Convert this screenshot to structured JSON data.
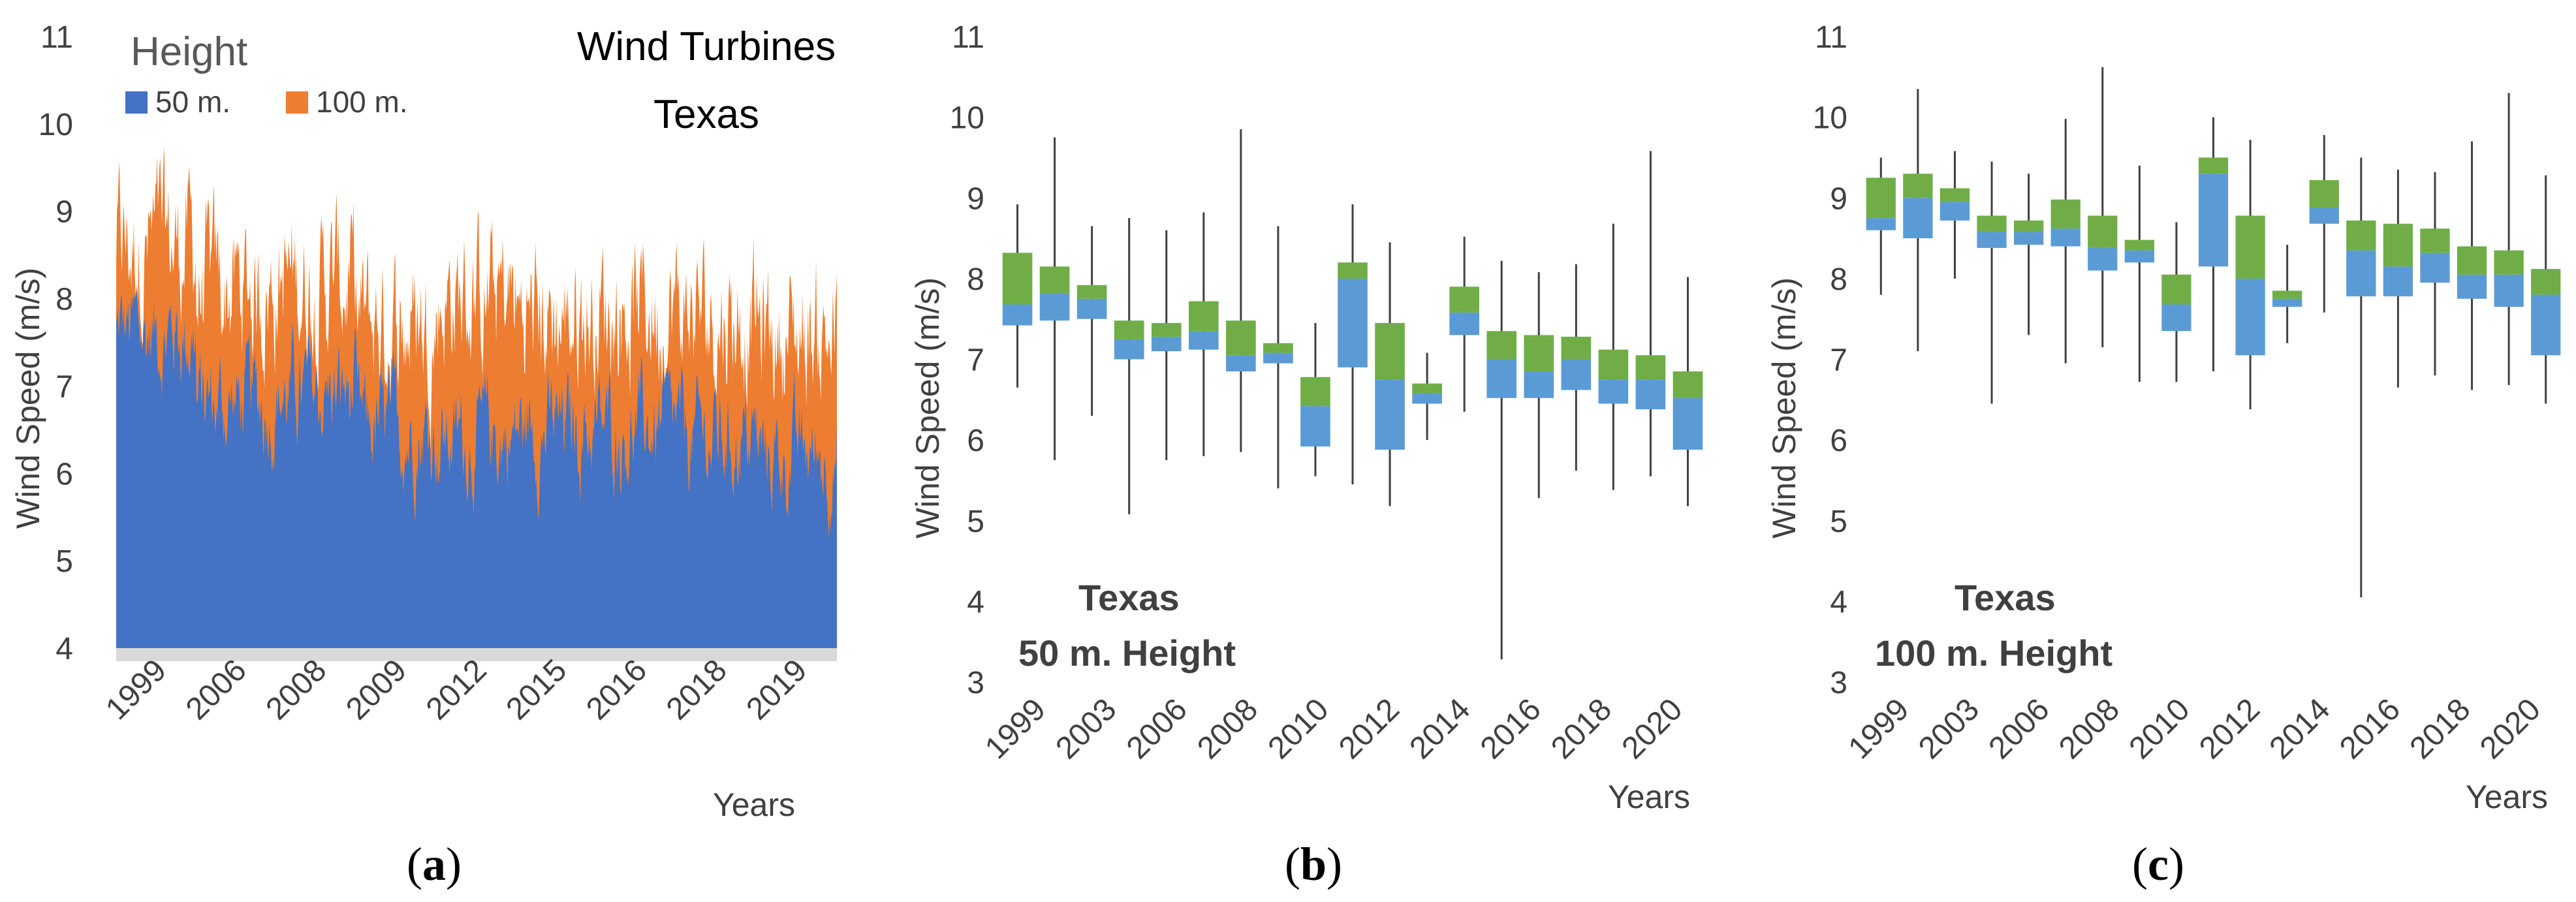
{
  "colors": {
    "series_50m": "#4472C4",
    "series_100m": "#ED7D31",
    "box_lower": "#5B9BD5",
    "box_upper": "#70AD47",
    "whisker": "#404040",
    "floor": "#D9D9D9",
    "text": "#404040"
  },
  "chart_data": [
    {
      "id": "a",
      "type": "area",
      "title_lines": [
        "Wind Turbines",
        "Texas"
      ],
      "legend_title": "Height",
      "ylabel": "Wind Speed (m/s)",
      "xlabel": "Years",
      "ylim": [
        4,
        11
      ],
      "yticks": [
        4,
        5,
        6,
        7,
        8,
        9,
        10,
        11
      ],
      "xticklabels": [
        "1999",
        "2006",
        "2008",
        "2009",
        "2012",
        "2015",
        "2016",
        "2018",
        "2019"
      ],
      "series": [
        {
          "name": "50 m.",
          "approx_mean_by_segment": [
            7.6,
            6.8,
            6.9,
            6.5,
            6.4,
            6.5,
            6.5,
            6.4,
            6.2
          ],
          "approx_peak": 8.3,
          "approx_min": 5.0
        },
        {
          "name": "100 m.",
          "approx_mean_by_segment": [
            8.6,
            8.1,
            8.2,
            7.7,
            8.0,
            7.8,
            7.9,
            7.8,
            7.6
          ],
          "approx_peak": 10.0,
          "approx_min": 5.1
        }
      ],
      "caption_letter": "a"
    },
    {
      "id": "b",
      "type": "box",
      "ylabel": "Wind Speed (m/s)",
      "xlabel": "Years",
      "ylim": [
        3,
        11
      ],
      "yticks": [
        3,
        4,
        5,
        6,
        7,
        8,
        9,
        10,
        11
      ],
      "annotation": [
        "Texas",
        "50 m. Height"
      ],
      "xticklabels": [
        "1999",
        "2003",
        "2006",
        "2008",
        "2010",
        "2012",
        "2014",
        "2016",
        "2018",
        "2020"
      ],
      "boxes": [
        {
          "q1": 7.42,
          "median": 7.68,
          "q3": 8.32,
          "min": 6.65,
          "max": 8.92
        },
        {
          "q1": 7.48,
          "median": 7.82,
          "q3": 8.15,
          "min": 5.75,
          "max": 9.75
        },
        {
          "q1": 7.5,
          "median": 7.75,
          "q3": 7.92,
          "min": 6.3,
          "max": 8.65
        },
        {
          "q1": 7.0,
          "median": 7.25,
          "q3": 7.48,
          "min": 5.08,
          "max": 8.75
        },
        {
          "q1": 7.1,
          "median": 7.28,
          "q3": 7.45,
          "min": 5.75,
          "max": 8.6
        },
        {
          "q1": 7.12,
          "median": 7.35,
          "q3": 7.72,
          "min": 5.8,
          "max": 8.82
        },
        {
          "q1": 6.85,
          "median": 7.05,
          "q3": 7.48,
          "min": 5.85,
          "max": 9.85
        },
        {
          "q1": 6.95,
          "median": 7.08,
          "q3": 7.2,
          "min": 5.4,
          "max": 8.65
        },
        {
          "q1": 5.92,
          "median": 6.42,
          "q3": 6.78,
          "min": 5.55,
          "max": 7.45
        },
        {
          "q1": 6.9,
          "median": 8.0,
          "q3": 8.2,
          "min": 5.45,
          "max": 8.92
        },
        {
          "q1": 5.88,
          "median": 6.75,
          "q3": 7.45,
          "min": 5.18,
          "max": 8.45
        },
        {
          "q1": 6.45,
          "median": 6.58,
          "q3": 6.7,
          "min": 6.0,
          "max": 7.08
        },
        {
          "q1": 7.3,
          "median": 7.58,
          "q3": 7.9,
          "min": 6.35,
          "max": 8.52
        },
        {
          "q1": 6.52,
          "median": 7.0,
          "q3": 7.35,
          "min": 3.28,
          "max": 8.22
        },
        {
          "q1": 6.52,
          "median": 6.85,
          "q3": 7.3,
          "min": 5.28,
          "max": 8.08
        },
        {
          "q1": 6.62,
          "median": 7.0,
          "q3": 7.28,
          "min": 5.62,
          "max": 8.18
        },
        {
          "q1": 6.45,
          "median": 6.75,
          "q3": 7.12,
          "min": 5.38,
          "max": 8.68
        },
        {
          "q1": 6.38,
          "median": 6.75,
          "q3": 7.05,
          "min": 5.55,
          "max": 9.58
        },
        {
          "q1": 5.88,
          "median": 6.52,
          "q3": 6.85,
          "min": 5.18,
          "max": 8.02
        }
      ],
      "caption_letter": "b"
    },
    {
      "id": "c",
      "type": "box",
      "ylabel": "Wind Speed (m/s)",
      "xlabel": "Years",
      "ylim": [
        3,
        11
      ],
      "yticks": [
        3,
        4,
        5,
        6,
        7,
        8,
        9,
        10,
        11
      ],
      "annotation": [
        "Texas",
        "100 m. Height"
      ],
      "xticklabels": [
        "1999",
        "2003",
        "2006",
        "2008",
        "2010",
        "2012",
        "2014",
        "2016",
        "2018",
        "2020"
      ],
      "boxes": [
        {
          "q1": 8.6,
          "median": 8.75,
          "q3": 9.25,
          "min": 7.8,
          "max": 9.5
        },
        {
          "q1": 8.5,
          "median": 9.0,
          "q3": 9.3,
          "min": 7.1,
          "max": 10.35
        },
        {
          "q1": 8.72,
          "median": 8.95,
          "q3": 9.12,
          "min": 8.0,
          "max": 9.58
        },
        {
          "q1": 8.38,
          "median": 8.58,
          "q3": 8.78,
          "min": 6.45,
          "max": 9.45
        },
        {
          "q1": 8.42,
          "median": 8.58,
          "q3": 8.72,
          "min": 7.3,
          "max": 9.3
        },
        {
          "q1": 8.4,
          "median": 8.62,
          "q3": 8.98,
          "min": 6.95,
          "max": 9.98
        },
        {
          "q1": 8.1,
          "median": 8.38,
          "q3": 8.78,
          "min": 7.15,
          "max": 10.62
        },
        {
          "q1": 8.2,
          "median": 8.35,
          "q3": 8.48,
          "min": 6.72,
          "max": 9.4
        },
        {
          "q1": 7.35,
          "median": 7.68,
          "q3": 8.05,
          "min": 6.72,
          "max": 8.7
        },
        {
          "q1": 8.15,
          "median": 9.3,
          "q3": 9.5,
          "min": 6.85,
          "max": 10.0
        },
        {
          "q1": 7.05,
          "median": 8.0,
          "q3": 8.78,
          "min": 6.38,
          "max": 9.72
        },
        {
          "q1": 7.65,
          "median": 7.75,
          "q3": 7.85,
          "min": 7.2,
          "max": 8.42
        },
        {
          "q1": 8.68,
          "median": 8.88,
          "q3": 9.22,
          "min": 7.58,
          "max": 9.78
        },
        {
          "q1": 7.78,
          "median": 8.35,
          "q3": 8.72,
          "min": 4.05,
          "max": 9.5
        },
        {
          "q1": 7.78,
          "median": 8.15,
          "q3": 8.68,
          "min": 6.65,
          "max": 9.35
        },
        {
          "q1": 7.95,
          "median": 8.32,
          "q3": 8.62,
          "min": 6.8,
          "max": 9.32
        },
        {
          "q1": 7.75,
          "median": 8.05,
          "q3": 8.4,
          "min": 6.62,
          "max": 9.7
        },
        {
          "q1": 7.65,
          "median": 8.05,
          "q3": 8.35,
          "min": 6.68,
          "max": 10.3
        },
        {
          "q1": 7.05,
          "median": 7.8,
          "q3": 8.12,
          "min": 6.45,
          "max": 9.28
        }
      ],
      "caption_letter": "c"
    }
  ]
}
